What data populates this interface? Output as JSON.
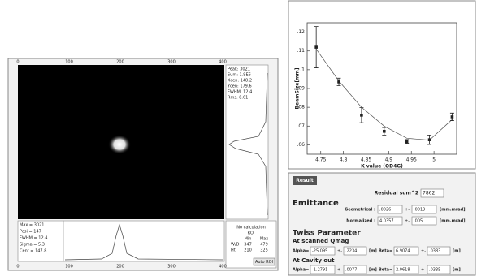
{
  "image_panel": {
    "ruler_top": [
      "0",
      "100",
      "200",
      "300",
      "400"
    ],
    "side_info": [
      "Peak: 3021",
      "Sum: 1.9E6",
      "Xcen: 148.2",
      "Ycen: 179.6",
      "FWHM: 12.4",
      "Rms: 8.61"
    ],
    "bottom_info": [
      "Max = 3021",
      "Posi = 147",
      "FWHM = 12.4",
      "Sigma = 5.3",
      "Cent = 147.8"
    ],
    "ruler_bottom": [
      "0",
      "100",
      "200",
      "300",
      "400"
    ],
    "roi": {
      "status": "No calculation",
      "title": "ROI",
      "headers": [
        "Min",
        "Max"
      ],
      "rows": [
        [
          "W/D",
          "347",
          "479"
        ],
        [
          "Ht",
          "210",
          "325"
        ]
      ],
      "button": "Auto ROI"
    }
  },
  "chart_data": {
    "type": "errorbar",
    "y_label": "BeamSize[mm]",
    "x_label": "K value (QD4G)",
    "x": [
      4.74,
      4.79,
      4.84,
      4.89,
      4.94,
      4.99,
      5.04
    ],
    "values": [
      0.112,
      0.0935,
      0.0758,
      0.0672,
      0.0618,
      0.0627,
      0.0749
    ],
    "errors": [
      0.011,
      0.002,
      0.004,
      0.002,
      0.001,
      0.0025,
      0.002
    ],
    "fit": {
      "x": [
        4.74,
        4.79,
        4.84,
        4.89,
        4.94,
        4.99,
        5.04
      ],
      "values": [
        0.111,
        0.094,
        0.08,
        0.07,
        0.0635,
        0.0625,
        0.0735
      ]
    },
    "color": "#222222",
    "xlim": [
      4.72,
      5.05
    ],
    "ylim": [
      0.055,
      0.125
    ],
    "xticks": [
      4.75,
      4.8,
      4.85,
      4.9,
      4.95,
      5
    ],
    "yticks": [
      {
        "value": 0.12,
        "label": ".12"
      },
      {
        "value": 0.11,
        "label": ".11"
      },
      {
        "value": 0.1,
        "label": ".1"
      },
      {
        "value": 0.09,
        "label": ".09"
      },
      {
        "value": 0.08,
        "label": ".08"
      },
      {
        "value": 0.07,
        "label": ".07"
      },
      {
        "value": 0.06,
        "label": ".06"
      }
    ]
  },
  "result": {
    "tab": "Result",
    "residual_label": "Residual sum^2",
    "residual": "7862",
    "emittance_title": "Emittance",
    "geometrical": {
      "label": "Geometrical :",
      "value": ".0026",
      "pm": "+-",
      "error": ".0019",
      "unit": "[mm.mrad]"
    },
    "normalized": {
      "label": "Normalized :",
      "value": "4.0357",
      "pm": "+-",
      "error": ".005",
      "unit": "[mm.mrad]"
    },
    "twiss_title": "Twiss Parameter",
    "scanned": {
      "title": "At scanned Qmag",
      "alpha_label": "Alpha=",
      "alpha": "-25.095",
      "alpha_pm": "+-",
      "alpha_err": ".2234",
      "alpha_unit": "[m]",
      "beta_label": "Beta=",
      "beta": "6.9074",
      "beta_pm": "+-",
      "beta_err": ".0383",
      "beta_unit": "[m]"
    },
    "cavity": {
      "title": "At Cavity out",
      "alpha_label": "Alpha=",
      "alpha": "-1.2791",
      "alpha_pm": "+-",
      "alpha_err": ".0077",
      "alpha_unit": "[m]",
      "beta_label": "Beta=",
      "beta": "2.0618",
      "beta_pm": "+-",
      "beta_err": ".0335",
      "beta_unit": "[m]"
    }
  }
}
